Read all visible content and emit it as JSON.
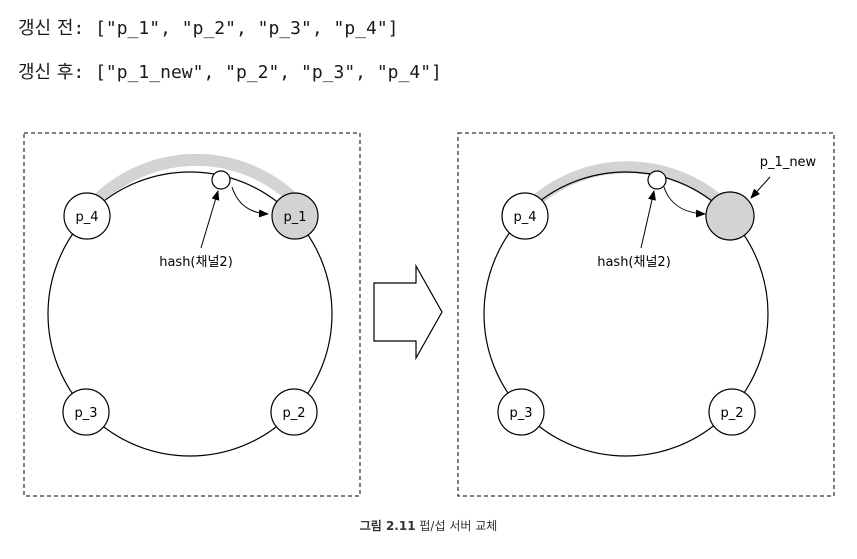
{
  "before": {
    "label": "갱신 전",
    "list": ": [\"p_1\", \"p_2\", \"p_3\", \"p_4\"]"
  },
  "after": {
    "label": "갱신 후",
    "list": ": [\"p_1_new\", \"p_2\", \"p_3\", \"p_4\"]"
  },
  "left_panel": {
    "nodes": {
      "p4": "p_4",
      "p1": "p_1",
      "p3": "p_3",
      "p2": "p_2"
    },
    "hash_label": "hash(채널2)",
    "highlighted_node": "p_1"
  },
  "right_panel": {
    "nodes": {
      "p4": "p_4",
      "p3": "p_3",
      "p2": "p_2"
    },
    "hash_label": "hash(채널2)",
    "new_node_label": "p_1_new"
  },
  "caption": {
    "number": "그림 2.11",
    "text": "펍/섭 서버 교체"
  },
  "colors": {
    "highlight": "#d3d3d3",
    "stroke": "#000000",
    "node_fill": "#ffffff"
  }
}
